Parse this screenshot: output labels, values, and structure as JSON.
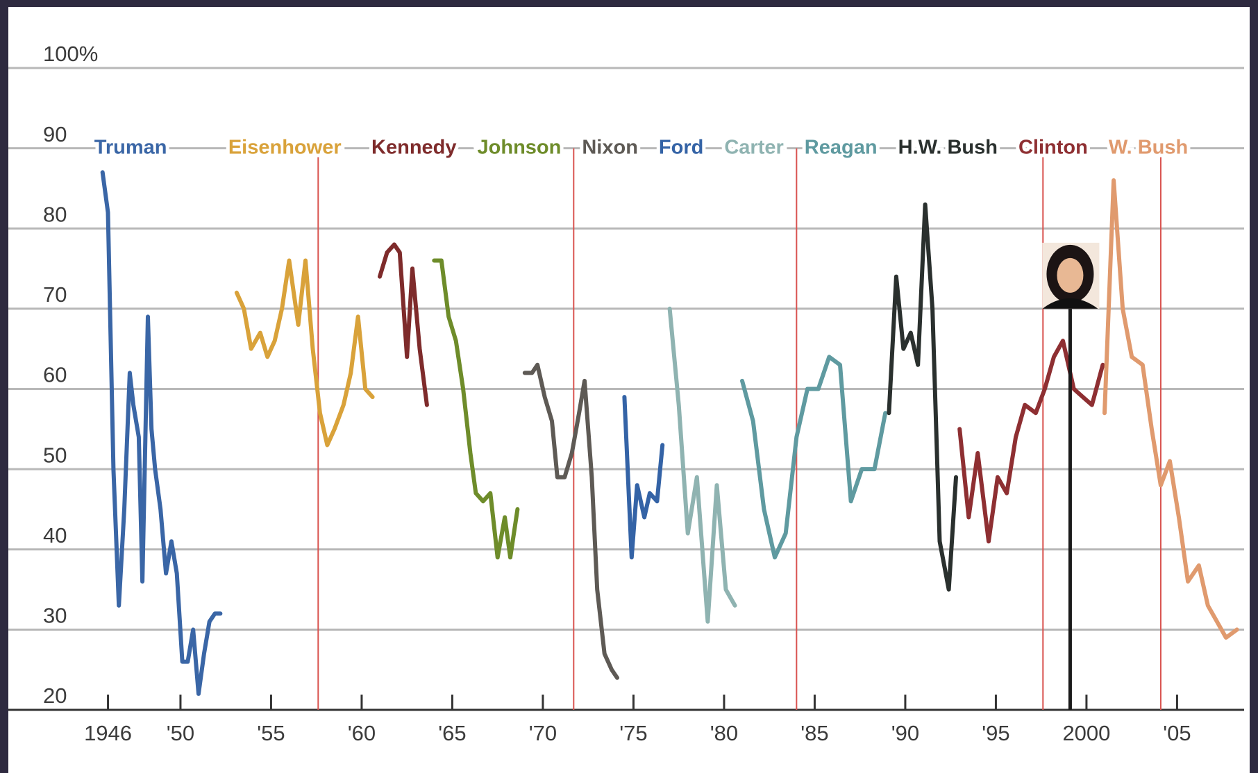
{
  "chart_data": {
    "type": "line",
    "xlim": [
      1940.5,
      2008.7
    ],
    "xticks": [
      1946,
      {
        "value": 1950,
        "label": "'50"
      },
      {
        "value": 1955,
        "label": "'55"
      },
      {
        "value": 1960,
        "label": "'60"
      },
      {
        "value": 1965,
        "label": "'65"
      },
      {
        "value": 1970,
        "label": "'70"
      },
      {
        "value": 1975,
        "label": "'75"
      },
      {
        "value": 1980,
        "label": "'80"
      },
      {
        "value": 1985,
        "label": "'85"
      },
      {
        "value": 1990,
        "label": "'90"
      },
      {
        "value": 1995,
        "label": "'95"
      },
      2000,
      {
        "value": 2005,
        "label": "'05"
      }
    ],
    "ylim": [
      20,
      100
    ],
    "yticks": [
      20,
      30,
      40,
      50,
      60,
      70,
      80,
      90,
      {
        "value": 100,
        "label": "100%"
      }
    ],
    "grid": true,
    "reference_lines_x": [
      1957.6,
      1971.7,
      1984.0,
      1997.6,
      2004.1
    ],
    "reference_line_color": "#d9534f",
    "highlight_line": {
      "x": 1999.1,
      "top": 70,
      "color": "#1a1a1a"
    },
    "series": [
      {
        "name": "Truman",
        "color": "#3a66a6",
        "x": [
          1945.7,
          1946.0,
          1946.3,
          1946.6,
          1946.9,
          1947.2,
          1947.4,
          1947.7,
          1947.9,
          1948.2,
          1948.4,
          1948.6,
          1948.9,
          1949.2,
          1949.5,
          1949.8,
          1950.1,
          1950.4,
          1950.7,
          1951.0,
          1951.3,
          1951.6,
          1951.9,
          1952.2
        ],
        "values": [
          87,
          82,
          50,
          33,
          45,
          62,
          58,
          54,
          36,
          69,
          55,
          50,
          45,
          37,
          41,
          37,
          26,
          26,
          30,
          22,
          27,
          31,
          32,
          32
        ]
      },
      {
        "name": "Eisenhower",
        "color": "#d9a23a",
        "x": [
          1953.1,
          1953.5,
          1953.9,
          1954.4,
          1954.8,
          1955.2,
          1955.6,
          1956.0,
          1956.5,
          1956.9,
          1957.3,
          1957.7,
          1958.1,
          1958.5,
          1959.0,
          1959.4,
          1959.8,
          1960.2,
          1960.6
        ],
        "values": [
          72,
          70,
          65,
          67,
          64,
          66,
          70,
          76,
          68,
          76,
          65,
          57,
          53,
          55,
          58,
          62,
          69,
          60,
          59
        ]
      },
      {
        "name": "Kennedy",
        "color": "#7e2b2b",
        "x": [
          1961.0,
          1961.4,
          1961.8,
          1962.1,
          1962.5,
          1962.8,
          1963.2,
          1963.6
        ],
        "values": [
          74,
          77,
          78,
          77,
          64,
          75,
          65,
          58
        ]
      },
      {
        "name": "Johnson",
        "color": "#6e8c2a",
        "x": [
          1964.0,
          1964.4,
          1964.8,
          1965.2,
          1965.6,
          1966.0,
          1966.3,
          1966.7,
          1967.1,
          1967.5,
          1967.9,
          1968.2,
          1968.6
        ],
        "values": [
          76,
          76,
          69,
          66,
          60,
          52,
          47,
          46,
          47,
          39,
          44,
          39,
          45
        ]
      },
      {
        "name": "Nixon",
        "color": "#5e5a55",
        "x": [
          1969.0,
          1969.4,
          1969.7,
          1970.1,
          1970.5,
          1970.8,
          1971.2,
          1971.6,
          1972.0,
          1972.3,
          1972.7,
          1973.0,
          1973.4,
          1973.8,
          1974.1
        ],
        "values": [
          62,
          62,
          63,
          59,
          56,
          49,
          49,
          52,
          57,
          61,
          49,
          35,
          27,
          25,
          24
        ]
      },
      {
        "name": "Ford",
        "color": "#3463a6",
        "x": [
          1974.5,
          1974.9,
          1975.2,
          1975.6,
          1975.9,
          1976.3,
          1976.6
        ],
        "values": [
          59,
          39,
          48,
          44,
          47,
          46,
          53
        ]
      },
      {
        "name": "Carter",
        "color": "#8fb3b1",
        "x": [
          1977.0,
          1977.5,
          1978.0,
          1978.5,
          1979.1,
          1979.6,
          1980.1,
          1980.6
        ],
        "values": [
          70,
          58,
          42,
          49,
          31,
          48,
          35,
          33
        ]
      },
      {
        "name": "Reagan",
        "color": "#5f9aa0",
        "x": [
          1981.0,
          1981.6,
          1982.2,
          1982.8,
          1983.4,
          1984.0,
          1984.6,
          1985.2,
          1985.8,
          1986.4,
          1987.0,
          1987.6,
          1988.3,
          1988.9
        ],
        "values": [
          61,
          56,
          45,
          39,
          42,
          54,
          60,
          60,
          64,
          63,
          46,
          50,
          50,
          57
        ]
      },
      {
        "name": "H.W. Bush",
        "color": "#2a302e",
        "x": [
          1989.1,
          1989.5,
          1989.9,
          1990.3,
          1990.7,
          1991.1,
          1991.5,
          1991.9,
          1992.4,
          1992.8
        ],
        "values": [
          57,
          74,
          65,
          67,
          63,
          83,
          70,
          41,
          35,
          49
        ]
      },
      {
        "name": "Clinton",
        "color": "#8e2f32",
        "x": [
          1993.0,
          1993.5,
          1994.0,
          1994.6,
          1995.1,
          1995.6,
          1996.1,
          1996.6,
          1997.2,
          1997.7,
          1998.2,
          1998.7,
          1999.3,
          1999.8,
          2000.3,
          2000.9
        ],
        "values": [
          55,
          44,
          52,
          41,
          49,
          47,
          54,
          58,
          57,
          60,
          64,
          66,
          60,
          59,
          58,
          63
        ]
      },
      {
        "name": "W. Bush",
        "color": "#e09a6e",
        "x": [
          2001.0,
          2001.5,
          2002.0,
          2002.5,
          2003.1,
          2003.6,
          2004.1,
          2004.6,
          2005.1,
          2005.6,
          2006.2,
          2006.7,
          2007.2,
          2007.7,
          2008.3
        ],
        "values": [
          57,
          86,
          70,
          64,
          63,
          55,
          48,
          51,
          44,
          36,
          38,
          33,
          31,
          29,
          30
        ]
      }
    ]
  }
}
